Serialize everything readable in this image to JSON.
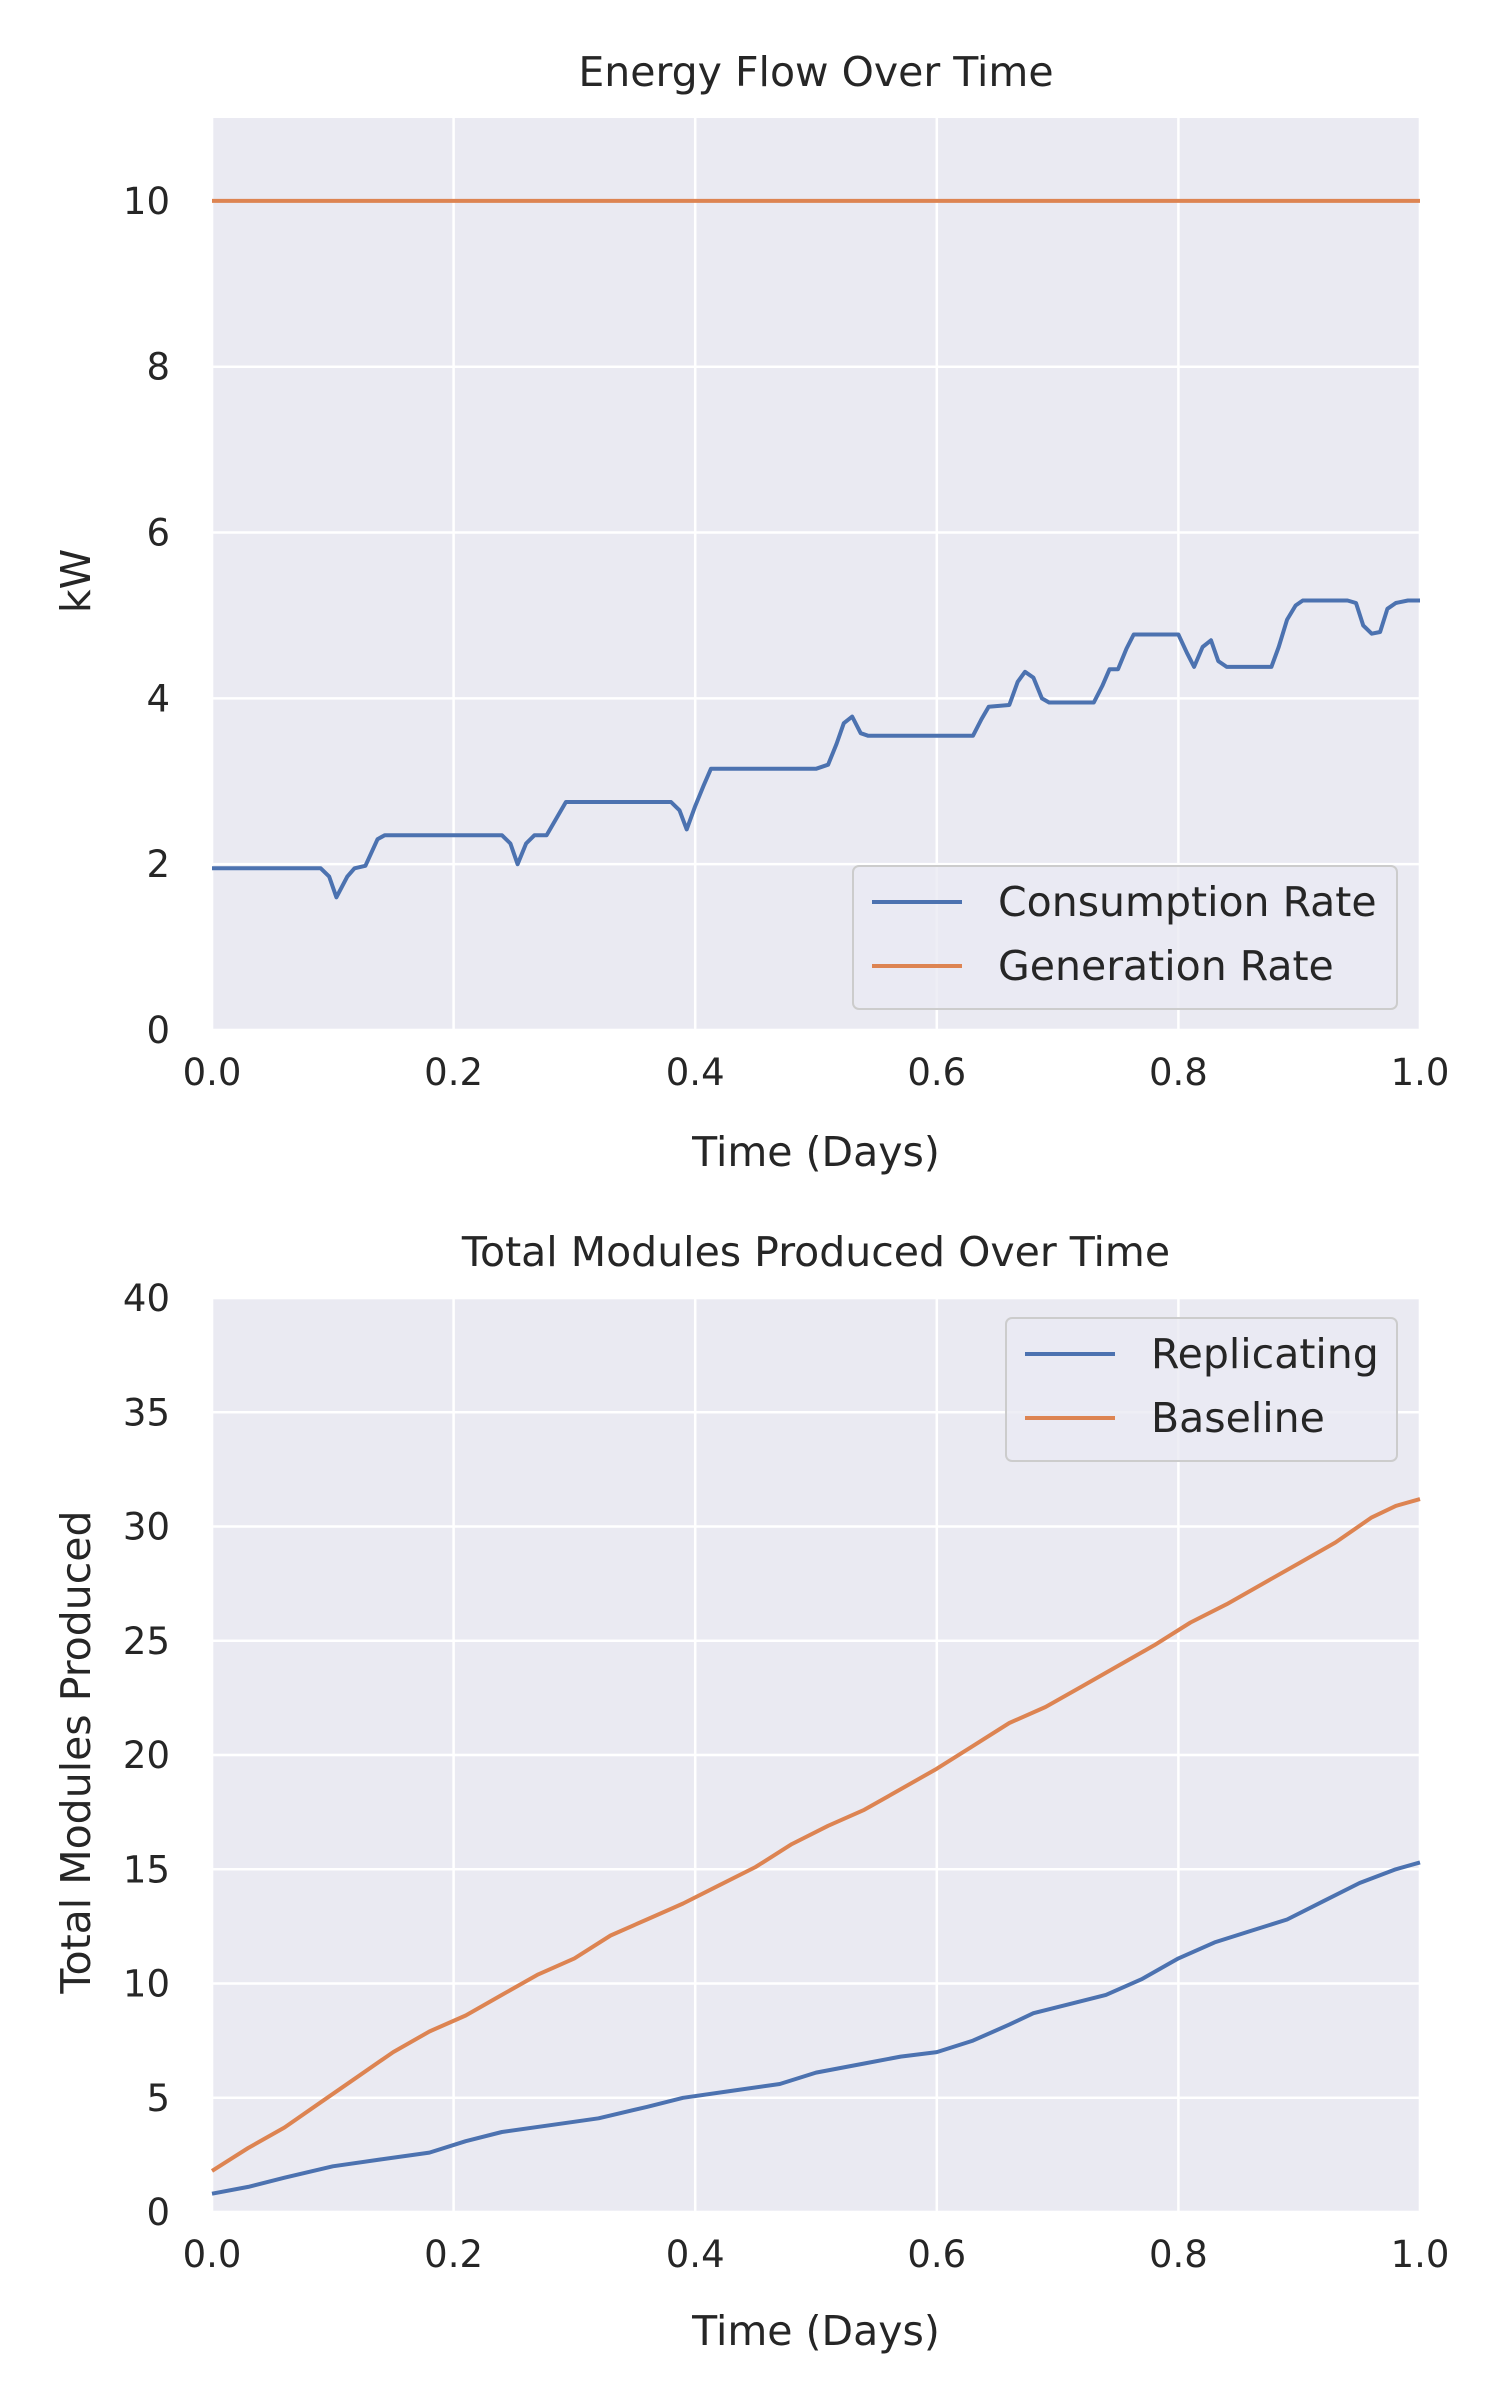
{
  "chart_data": [
    {
      "type": "line",
      "title": "Energy Flow Over Time",
      "xlabel": "Time (Days)",
      "ylabel": "kW",
      "xlim": [
        0,
        1
      ],
      "ylim": [
        0,
        11
      ],
      "xticks": [
        "0.0",
        "0.2",
        "0.4",
        "0.6",
        "0.8",
        "1.0"
      ],
      "yticks": [
        "0",
        "2",
        "4",
        "6",
        "8",
        "10"
      ],
      "grid": true,
      "legend_position": "lower right",
      "series": [
        {
          "name": "Consumption Rate",
          "color": "#4c72b0",
          "x": [
            0.0,
            0.09,
            0.097,
            0.103,
            0.112,
            0.118,
            0.127,
            0.137,
            0.143,
            0.24,
            0.247,
            0.253,
            0.26,
            0.267,
            0.277,
            0.287,
            0.293,
            0.38,
            0.387,
            0.393,
            0.4,
            0.407,
            0.413,
            0.5,
            0.51,
            0.517,
            0.523,
            0.53,
            0.537,
            0.543,
            0.553,
            0.63,
            0.637,
            0.643,
            0.66,
            0.667,
            0.673,
            0.68,
            0.687,
            0.693,
            0.73,
            0.737,
            0.743,
            0.75,
            0.757,
            0.763,
            0.8,
            0.807,
            0.813,
            0.82,
            0.827,
            0.833,
            0.84,
            0.877,
            0.883,
            0.89,
            0.897,
            0.903,
            0.94,
            0.947,
            0.953,
            0.96,
            0.967,
            0.973,
            0.98,
            0.99,
            1.0
          ],
          "y": [
            1.95,
            1.95,
            1.85,
            1.6,
            1.85,
            1.95,
            1.98,
            2.3,
            2.35,
            2.35,
            2.25,
            2.0,
            2.25,
            2.35,
            2.35,
            2.6,
            2.75,
            2.75,
            2.65,
            2.42,
            2.7,
            2.95,
            3.15,
            3.15,
            3.2,
            3.45,
            3.7,
            3.78,
            3.58,
            3.55,
            3.55,
            3.55,
            3.75,
            3.9,
            3.92,
            4.2,
            4.32,
            4.25,
            4.0,
            3.95,
            3.95,
            4.15,
            4.35,
            4.35,
            4.6,
            4.77,
            4.77,
            4.55,
            4.38,
            4.62,
            4.7,
            4.45,
            4.38,
            4.38,
            4.62,
            4.95,
            5.12,
            5.18,
            5.18,
            5.15,
            4.88,
            4.78,
            4.8,
            5.08,
            5.15,
            5.18,
            5.18
          ]
        },
        {
          "name": "Generation Rate",
          "color": "#dd8452",
          "x": [
            0.0,
            1.0
          ],
          "y": [
            10,
            10
          ]
        }
      ]
    },
    {
      "type": "line",
      "title": "Total Modules Produced Over Time",
      "xlabel": "Time (Days)",
      "ylabel": "Total Modules Produced",
      "xlim": [
        0,
        1
      ],
      "ylim": [
        0,
        40
      ],
      "xticks": [
        "0.0",
        "0.2",
        "0.4",
        "0.6",
        "0.8",
        "1.0"
      ],
      "yticks": [
        "0",
        "5",
        "10",
        "15",
        "20",
        "25",
        "30",
        "35",
        "40"
      ],
      "grid": true,
      "legend_position": "upper right",
      "series": [
        {
          "name": "Replicating",
          "color": "#4c72b0",
          "x": [
            0.0,
            0.03,
            0.06,
            0.1,
            0.14,
            0.18,
            0.21,
            0.24,
            0.28,
            0.32,
            0.36,
            0.39,
            0.43,
            0.47,
            0.5,
            0.54,
            0.57,
            0.6,
            0.63,
            0.66,
            0.68,
            0.71,
            0.74,
            0.77,
            0.8,
            0.83,
            0.86,
            0.89,
            0.92,
            0.95,
            0.98,
            1.0
          ],
          "y": [
            0.8,
            1.1,
            1.5,
            2.0,
            2.3,
            2.6,
            3.1,
            3.5,
            3.8,
            4.1,
            4.6,
            5.0,
            5.3,
            5.6,
            6.1,
            6.5,
            6.8,
            7.0,
            7.5,
            8.2,
            8.7,
            9.1,
            9.5,
            10.2,
            11.1,
            11.8,
            12.3,
            12.8,
            13.6,
            14.4,
            15.0,
            15.3
          ]
        },
        {
          "name": "Baseline",
          "color": "#dd8452",
          "x": [
            0.0,
            0.03,
            0.06,
            0.09,
            0.12,
            0.15,
            0.18,
            0.21,
            0.24,
            0.27,
            0.3,
            0.33,
            0.36,
            0.39,
            0.42,
            0.45,
            0.48,
            0.51,
            0.54,
            0.57,
            0.6,
            0.63,
            0.66,
            0.69,
            0.72,
            0.75,
            0.78,
            0.81,
            0.84,
            0.87,
            0.9,
            0.93,
            0.96,
            0.98,
            1.0
          ],
          "y": [
            1.8,
            2.8,
            3.7,
            4.8,
            5.9,
            7.0,
            7.9,
            8.6,
            9.5,
            10.4,
            11.1,
            12.1,
            12.8,
            13.5,
            14.3,
            15.1,
            16.1,
            16.9,
            17.6,
            18.5,
            19.4,
            20.4,
            21.4,
            22.1,
            23.0,
            23.9,
            24.8,
            25.8,
            26.6,
            27.5,
            28.4,
            29.3,
            30.4,
            30.9,
            31.2
          ]
        }
      ]
    }
  ]
}
